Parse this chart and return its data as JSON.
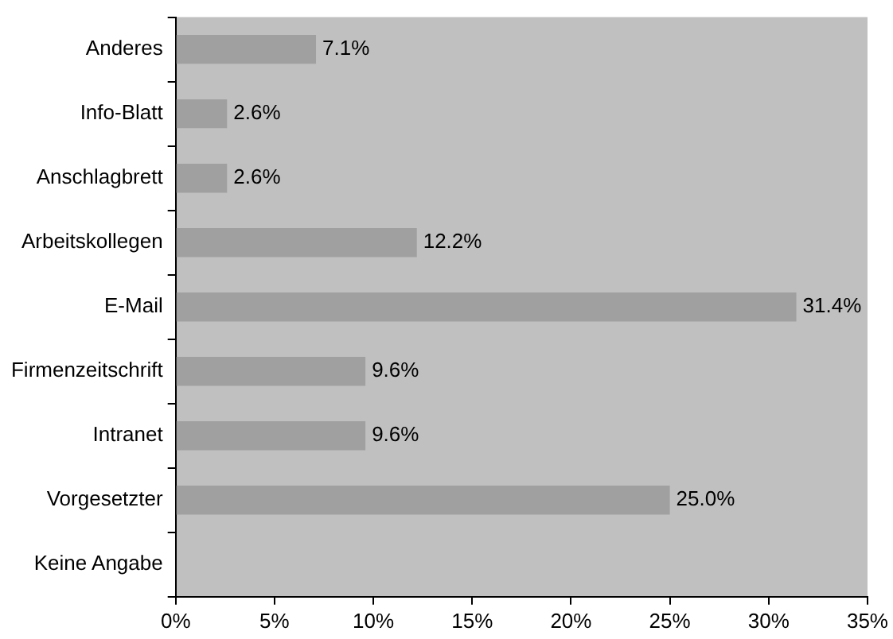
{
  "chart_data": {
    "type": "bar",
    "orientation": "horizontal",
    "categories": [
      "Anderes",
      "Info-Blatt",
      "Anschlagbrett",
      "Arbeitskollegen",
      "E-Mail",
      "Firmenzeitschrift",
      "Intranet",
      "Vorgesetzter",
      "Keine Angabe"
    ],
    "values": [
      7.1,
      2.6,
      2.6,
      12.2,
      31.4,
      9.6,
      9.6,
      25.0,
      null
    ],
    "value_labels": [
      "7.1%",
      "2.6%",
      "2.6%",
      "12.2%",
      "31.4%",
      "9.6%",
      "9.6%",
      "25.0%",
      null
    ],
    "color": "#a0a0a0",
    "xlim": [
      0,
      35
    ],
    "xticks": [
      {
        "value": 0,
        "label": "0%"
      },
      {
        "value": 5,
        "label": "5%"
      },
      {
        "value": 10,
        "label": "10%"
      },
      {
        "value": 15,
        "label": "15%"
      },
      {
        "value": 20,
        "label": "20%"
      },
      {
        "value": 25,
        "label": "25%"
      },
      {
        "value": 30,
        "label": "30%"
      },
      {
        "value": 35,
        "label": "35%"
      }
    ],
    "grid": false,
    "legend": false
  }
}
